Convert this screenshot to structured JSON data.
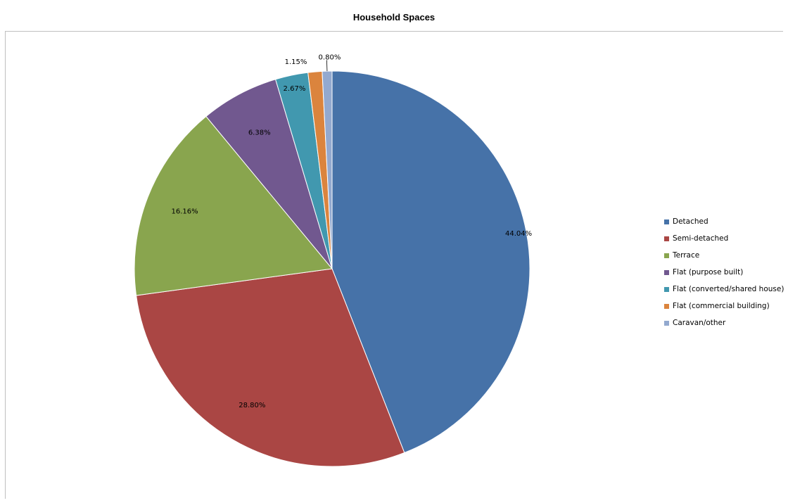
{
  "chart_data": {
    "type": "pie",
    "title": "Household Spaces",
    "categories": [
      "Detached",
      "Semi-detached",
      "Terrace",
      "Flat (purpose built)",
      "Flat (converted/shared house)",
      "Flat (commercial building)",
      "Caravan/other"
    ],
    "values": [
      44.04,
      28.8,
      16.16,
      6.38,
      2.67,
      1.15,
      0.8
    ],
    "data_labels": [
      "44.04%",
      "28.80%",
      "16.16%",
      "6.38%",
      "2.67%",
      "1.15%",
      "0.80%"
    ],
    "colors": [
      "#4672A8",
      "#AA4644",
      "#89A54E",
      "#71588F",
      "#4198AF",
      "#DB843D",
      "#93A9CF"
    ],
    "legend_position": "right"
  }
}
